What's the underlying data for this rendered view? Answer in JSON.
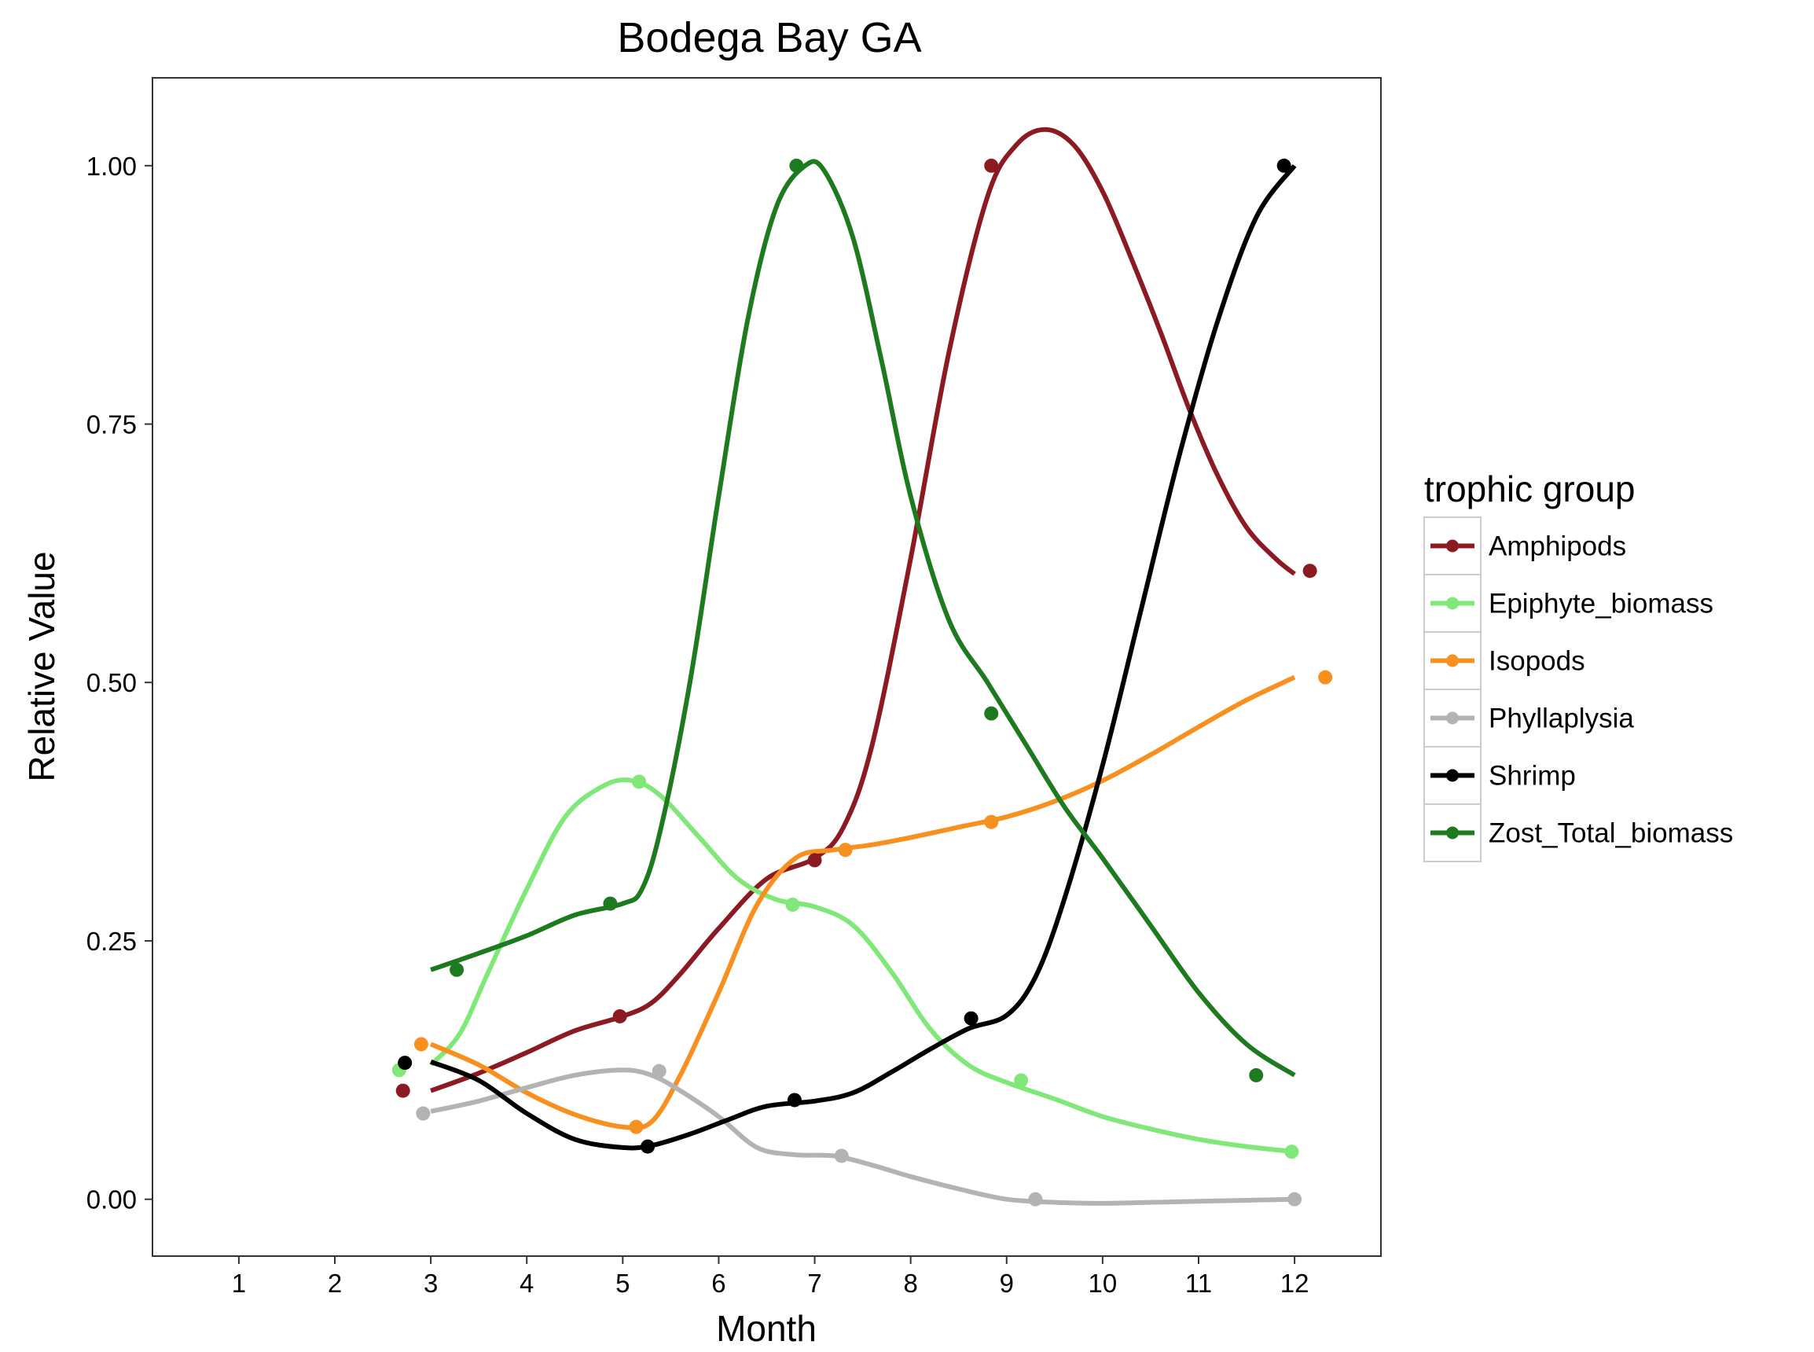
{
  "chart_data": {
    "type": "line",
    "title": "Bodega Bay GA",
    "xlabel": "Month",
    "ylabel": "Relative Value",
    "xlim": [
      0.1,
      12.9
    ],
    "ylim": [
      -0.055,
      1.085
    ],
    "x_ticks": [
      "1",
      "2",
      "3",
      "4",
      "5",
      "6",
      "7",
      "8",
      "9",
      "10",
      "11",
      "12"
    ],
    "y_ticks": [
      "0.00",
      "0.25",
      "0.50",
      "0.75",
      "1.00"
    ],
    "grid": false,
    "legend": {
      "title": "trophic group",
      "placement": "right"
    },
    "series": [
      {
        "name": "Amphipods",
        "color": "#8b1a22",
        "points": [
          [
            2.71,
            0.105
          ],
          [
            4.97,
            0.177
          ],
          [
            7.0,
            0.328
          ],
          [
            8.84,
            1.0
          ],
          [
            12.16,
            0.608
          ]
        ],
        "smooth": [
          [
            3.0,
            0.105
          ],
          [
            3.5,
            0.122
          ],
          [
            4.0,
            0.142
          ],
          [
            4.5,
            0.163
          ],
          [
            5.0,
            0.177
          ],
          [
            5.3,
            0.19
          ],
          [
            5.6,
            0.218
          ],
          [
            6.0,
            0.262
          ],
          [
            6.5,
            0.31
          ],
          [
            7.0,
            0.33
          ],
          [
            7.3,
            0.36
          ],
          [
            7.6,
            0.44
          ],
          [
            8.0,
            0.62
          ],
          [
            8.4,
            0.82
          ],
          [
            8.8,
            0.97
          ],
          [
            9.1,
            1.02
          ],
          [
            9.4,
            1.035
          ],
          [
            9.7,
            1.02
          ],
          [
            10.0,
            0.975
          ],
          [
            10.3,
            0.91
          ],
          [
            10.6,
            0.84
          ],
          [
            10.9,
            0.765
          ],
          [
            11.2,
            0.7
          ],
          [
            11.5,
            0.65
          ],
          [
            11.8,
            0.62
          ],
          [
            12.0,
            0.605
          ]
        ]
      },
      {
        "name": "Epiphyte_biomass",
        "color": "#80e878",
        "points": [
          [
            2.67,
            0.125
          ],
          [
            5.17,
            0.404
          ],
          [
            6.77,
            0.285
          ],
          [
            9.15,
            0.115
          ],
          [
            11.97,
            0.046
          ]
        ],
        "smooth": [
          [
            3.0,
            0.13
          ],
          [
            3.3,
            0.16
          ],
          [
            3.6,
            0.22
          ],
          [
            4.0,
            0.3
          ],
          [
            4.4,
            0.37
          ],
          [
            4.8,
            0.4
          ],
          [
            5.1,
            0.405
          ],
          [
            5.4,
            0.39
          ],
          [
            5.8,
            0.35
          ],
          [
            6.2,
            0.31
          ],
          [
            6.6,
            0.29
          ],
          [
            7.0,
            0.283
          ],
          [
            7.4,
            0.265
          ],
          [
            7.8,
            0.22
          ],
          [
            8.2,
            0.165
          ],
          [
            8.6,
            0.13
          ],
          [
            9.0,
            0.113
          ],
          [
            9.5,
            0.097
          ],
          [
            10.0,
            0.08
          ],
          [
            10.5,
            0.068
          ],
          [
            11.0,
            0.058
          ],
          [
            11.5,
            0.051
          ],
          [
            12.0,
            0.046
          ]
        ]
      },
      {
        "name": "Isopods",
        "color": "#f7901e",
        "points": [
          [
            2.9,
            0.15
          ],
          [
            5.14,
            0.07
          ],
          [
            7.32,
            0.338
          ],
          [
            8.84,
            0.365
          ],
          [
            12.32,
            0.505
          ]
        ],
        "smooth": [
          [
            3.0,
            0.15
          ],
          [
            3.5,
            0.13
          ],
          [
            4.0,
            0.103
          ],
          [
            4.5,
            0.082
          ],
          [
            5.0,
            0.07
          ],
          [
            5.3,
            0.075
          ],
          [
            5.6,
            0.12
          ],
          [
            6.0,
            0.2
          ],
          [
            6.4,
            0.285
          ],
          [
            6.8,
            0.33
          ],
          [
            7.2,
            0.338
          ],
          [
            7.6,
            0.343
          ],
          [
            8.0,
            0.35
          ],
          [
            8.5,
            0.36
          ],
          [
            9.0,
            0.37
          ],
          [
            9.5,
            0.385
          ],
          [
            10.0,
            0.405
          ],
          [
            10.5,
            0.43
          ],
          [
            11.0,
            0.457
          ],
          [
            11.5,
            0.483
          ],
          [
            12.0,
            0.505
          ]
        ]
      },
      {
        "name": "Phyllaplysia",
        "color": "#b3b3b3",
        "points": [
          [
            2.92,
            0.083
          ],
          [
            5.38,
            0.124
          ],
          [
            7.28,
            0.042
          ],
          [
            9.3,
            0.0
          ],
          [
            12.0,
            0.0
          ]
        ],
        "smooth": [
          [
            3.0,
            0.085
          ],
          [
            3.5,
            0.095
          ],
          [
            4.0,
            0.108
          ],
          [
            4.5,
            0.12
          ],
          [
            5.0,
            0.125
          ],
          [
            5.3,
            0.12
          ],
          [
            5.6,
            0.105
          ],
          [
            6.0,
            0.08
          ],
          [
            6.4,
            0.05
          ],
          [
            6.8,
            0.043
          ],
          [
            7.2,
            0.042
          ],
          [
            7.6,
            0.033
          ],
          [
            8.0,
            0.022
          ],
          [
            8.5,
            0.01
          ],
          [
            9.0,
            0.0
          ],
          [
            9.5,
            -0.003
          ],
          [
            10.0,
            -0.004
          ],
          [
            10.5,
            -0.003
          ],
          [
            11.0,
            -0.002
          ],
          [
            11.5,
            -0.001
          ],
          [
            12.0,
            0.0
          ]
        ]
      },
      {
        "name": "Shrimp",
        "color": "#000000",
        "points": [
          [
            2.73,
            0.132
          ],
          [
            5.26,
            0.051
          ],
          [
            6.79,
            0.096
          ],
          [
            8.63,
            0.175
          ],
          [
            11.89,
            1.0
          ]
        ],
        "smooth": [
          [
            3.0,
            0.133
          ],
          [
            3.5,
            0.115
          ],
          [
            4.0,
            0.083
          ],
          [
            4.5,
            0.058
          ],
          [
            5.0,
            0.05
          ],
          [
            5.3,
            0.052
          ],
          [
            5.7,
            0.063
          ],
          [
            6.1,
            0.077
          ],
          [
            6.5,
            0.09
          ],
          [
            7.0,
            0.095
          ],
          [
            7.4,
            0.103
          ],
          [
            7.8,
            0.123
          ],
          [
            8.2,
            0.145
          ],
          [
            8.6,
            0.165
          ],
          [
            9.0,
            0.178
          ],
          [
            9.3,
            0.215
          ],
          [
            9.6,
            0.29
          ],
          [
            10.0,
            0.42
          ],
          [
            10.4,
            0.57
          ],
          [
            10.8,
            0.72
          ],
          [
            11.2,
            0.85
          ],
          [
            11.6,
            0.95
          ],
          [
            12.0,
            1.0
          ]
        ]
      },
      {
        "name": "Zost_Total_biomass",
        "color": "#1e7a1e",
        "points": [
          [
            3.27,
            0.222
          ],
          [
            4.87,
            0.286
          ],
          [
            6.81,
            1.0
          ],
          [
            8.84,
            0.47
          ],
          [
            11.6,
            0.12
          ]
        ],
        "smooth": [
          [
            3.0,
            0.222
          ],
          [
            3.5,
            0.238
          ],
          [
            4.0,
            0.255
          ],
          [
            4.5,
            0.275
          ],
          [
            5.0,
            0.286
          ],
          [
            5.2,
            0.3
          ],
          [
            5.4,
            0.36
          ],
          [
            5.7,
            0.5
          ],
          [
            6.0,
            0.68
          ],
          [
            6.3,
            0.85
          ],
          [
            6.6,
            0.96
          ],
          [
            6.9,
            1.0
          ],
          [
            7.1,
            0.995
          ],
          [
            7.4,
            0.93
          ],
          [
            7.7,
            0.81
          ],
          [
            8.0,
            0.68
          ],
          [
            8.4,
            0.56
          ],
          [
            8.8,
            0.5
          ],
          [
            9.2,
            0.44
          ],
          [
            9.6,
            0.38
          ],
          [
            10.0,
            0.33
          ],
          [
            10.5,
            0.265
          ],
          [
            11.0,
            0.2
          ],
          [
            11.5,
            0.15
          ],
          [
            12.0,
            0.12
          ]
        ]
      }
    ]
  }
}
